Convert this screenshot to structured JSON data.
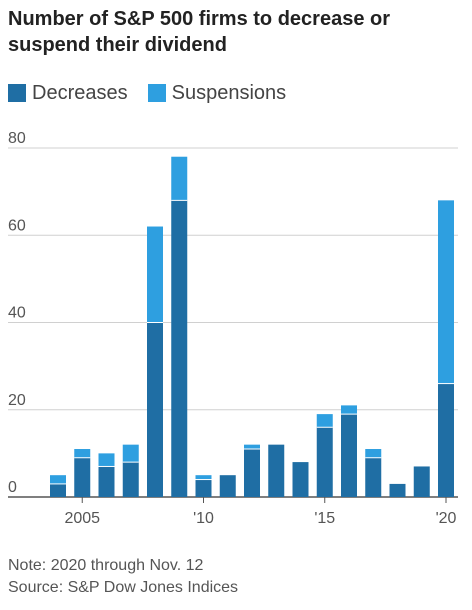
{
  "chart_data": {
    "type": "bar",
    "stacked": true,
    "title": "Number of S&P 500 firms to decrease or suspend their dividend",
    "categories": [
      "2004",
      "2005",
      "2006",
      "2007",
      "2008",
      "2009",
      "2010",
      "2011",
      "2012",
      "2013",
      "2014",
      "2015",
      "2016",
      "2017",
      "2018",
      "2019",
      "2020"
    ],
    "x_tick_labels": [
      {
        "category": "2005",
        "label": "2005"
      },
      {
        "category": "2010",
        "label": "'10"
      },
      {
        "category": "2015",
        "label": "'15"
      },
      {
        "category": "2020",
        "label": "'20"
      }
    ],
    "series": [
      {
        "name": "Decreases",
        "color": "#1f6ea4",
        "values": [
          3,
          9,
          7,
          8,
          40,
          68,
          4,
          5,
          11,
          12,
          8,
          16,
          19,
          9,
          3,
          7,
          26
        ]
      },
      {
        "name": "Suspensions",
        "color": "#2e9fe0",
        "values": [
          2,
          2,
          3,
          4,
          22,
          10,
          1,
          0,
          1,
          0,
          0,
          3,
          2,
          2,
          0,
          0,
          42
        ]
      }
    ],
    "ylim": [
      0,
      80
    ],
    "yticks": [
      0,
      20,
      40,
      60,
      80
    ],
    "grid": true,
    "legend": "top-left"
  },
  "note": "Note: 2020 through Nov. 12",
  "source": "Source: S&P Dow Jones Indices"
}
